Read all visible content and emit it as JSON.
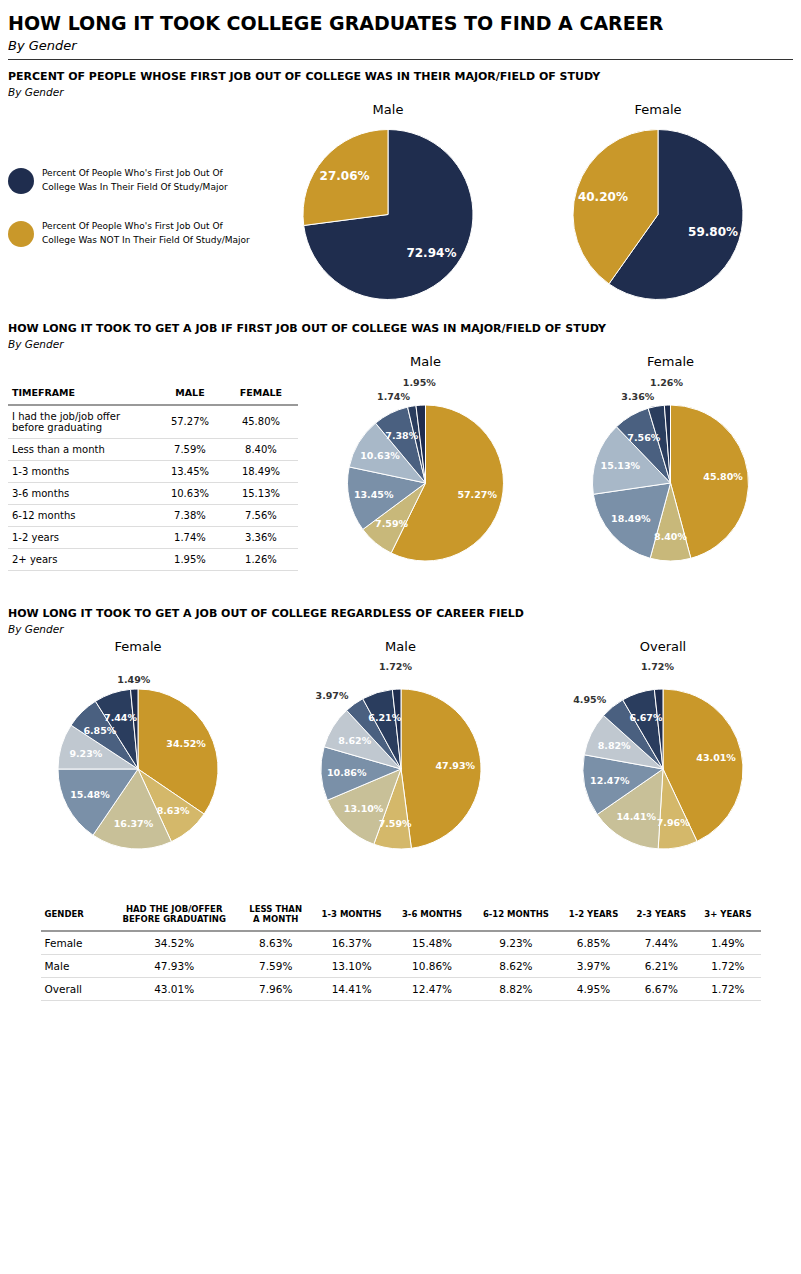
{
  "title": "HOW LONG IT TOOK COLLEGE GRADUATES TO FIND A CAREER",
  "subtitle": "By Gender",
  "chart_data": [
    {
      "type": "pie",
      "title": "PERCENT OF PEOPLE WHOSE FIRST JOB OUT OF COLLEGE WAS IN THEIR MAJOR/FIELD OF STUDY",
      "subtitle": "By Gender",
      "categories": [
        "Percent Of People Who's First Job Out Of\nCollege Was In Their Field Of Study/Major",
        "Percent Of People Who's First Job Out Of\nCollege Was NOT In Their Field Of Study/Major"
      ],
      "colors": [
        "#1f2d4e",
        "#c9982a"
      ],
      "data_labels": true,
      "series": [
        {
          "name": "Male",
          "values": [
            72.94,
            27.06
          ],
          "value_labels": [
            "72.94%",
            "27.06%"
          ]
        },
        {
          "name": "Female",
          "values": [
            59.8,
            40.2
          ],
          "value_labels": [
            "59.80%",
            "40.20%"
          ]
        }
      ]
    },
    {
      "type": "table",
      "title": "HOW LONG IT TOOK TO GET A JOB IF FIRST JOB OUT OF COLLEGE WAS IN MAJOR/FIELD OF STUDY",
      "subtitle": "By Gender",
      "x_label": "TIMEFRAME",
      "categories": [
        "I had the job/job offer\nbefore graduating",
        "Less than a month",
        "1-3 months",
        "3-6 months",
        "6-12 months",
        "1-2 years",
        "2+ years"
      ],
      "series": [
        {
          "name": "MALE",
          "values": [
            57.27,
            7.59,
            13.45,
            10.63,
            7.38,
            1.74,
            1.95
          ],
          "value_labels": [
            "57.27%",
            "7.59%",
            "13.45%",
            "10.63%",
            "7.38%",
            "1.74%",
            "1.95%"
          ]
        },
        {
          "name": "FEMALE",
          "values": [
            45.8,
            8.4,
            18.49,
            15.13,
            7.56,
            3.36,
            1.26
          ],
          "value_labels": [
            "45.80%",
            "8.40%",
            "18.49%",
            "15.13%",
            "7.56%",
            "3.36%",
            "1.26%"
          ]
        }
      ]
    },
    {
      "type": "pie",
      "colors": [
        "#c9982a",
        "#c8b87a",
        "#7a90a8",
        "#a8b8c8",
        "#4a6080",
        "#2a3d5e",
        "#1f2d4e"
      ],
      "data_labels": true,
      "series": [
        {
          "name": "Male",
          "values": [
            57.27,
            7.59,
            13.45,
            10.63,
            7.38,
            1.74,
            1.95
          ],
          "value_labels": [
            "57.27%",
            "7.59%",
            "13.45%",
            "10.63%",
            "7.38%",
            "1.74%",
            "1.95%"
          ]
        },
        {
          "name": "Female",
          "values": [
            45.8,
            8.4,
            18.49,
            15.13,
            7.56,
            3.36,
            1.26
          ],
          "value_labels": [
            "45.80%",
            "8.40%",
            "18.49%",
            "15.13%",
            "7.56%",
            "3.36%",
            "1.26%"
          ]
        }
      ]
    },
    {
      "type": "pie",
      "title": "HOW LONG IT TOOK TO GET A JOB OUT OF COLLEGE REGARDLESS OF CAREER FIELD",
      "subtitle": "By Gender",
      "colors": [
        "#c9982a",
        "#d4b86a",
        "#c8c098",
        "#7a90a8",
        "#c0c8d0",
        "#4a6080",
        "#2a3d5e",
        "#1f2d4e"
      ],
      "data_labels": true,
      "series": [
        {
          "name": "Female",
          "values": [
            34.52,
            8.63,
            16.37,
            15.48,
            9.23,
            6.85,
            7.44,
            1.49
          ],
          "value_labels": [
            "34.52%",
            "8.63%",
            "16.37%",
            "15.48%",
            "9.23%",
            "6.85%",
            "7.44%",
            "1.49%"
          ]
        },
        {
          "name": "Male",
          "values": [
            47.93,
            7.59,
            13.1,
            10.86,
            8.62,
            3.97,
            6.21,
            1.72
          ],
          "value_labels": [
            "47.93%",
            "7.59%",
            "13.10%",
            "10.86%",
            "8.62%",
            "3.97%",
            "6.21%",
            "1.72%"
          ]
        },
        {
          "name": "Overall",
          "values": [
            43.01,
            7.96,
            14.41,
            12.47,
            8.82,
            4.95,
            6.67,
            1.72
          ],
          "value_labels": [
            "43.01%",
            "7.96%",
            "14.41%",
            "12.47%",
            "8.82%",
            "4.95%",
            "6.67%",
            "1.72%"
          ]
        }
      ]
    },
    {
      "type": "table",
      "x_label": "GENDER",
      "categories": [
        "Female",
        "Male",
        "Overall"
      ],
      "series": [
        {
          "name": "HAD THE JOB/OFFER\nBEFORE GRADUATING",
          "values": [
            34.52,
            47.93,
            43.01
          ],
          "value_labels": [
            "34.52%",
            "47.93%",
            "43.01%"
          ]
        },
        {
          "name": "LESS THAN\nA MONTH",
          "values": [
            8.63,
            7.59,
            7.96
          ],
          "value_labels": [
            "8.63%",
            "7.59%",
            "7.96%"
          ]
        },
        {
          "name": "1-3 MONTHS",
          "values": [
            16.37,
            13.1,
            14.41
          ],
          "value_labels": [
            "16.37%",
            "13.10%",
            "14.41%"
          ]
        },
        {
          "name": "3-6 MONTHS",
          "values": [
            15.48,
            10.86,
            12.47
          ],
          "value_labels": [
            "15.48%",
            "10.86%",
            "12.47%"
          ]
        },
        {
          "name": "6-12 MONTHS",
          "values": [
            9.23,
            8.62,
            8.82
          ],
          "value_labels": [
            "9.23%",
            "8.62%",
            "8.82%"
          ]
        },
        {
          "name": "1-2 YEARS",
          "values": [
            6.85,
            3.97,
            4.95
          ],
          "value_labels": [
            "6.85%",
            "3.97%",
            "4.95%"
          ]
        },
        {
          "name": "2-3 YEARS",
          "values": [
            7.44,
            6.21,
            6.67
          ],
          "value_labels": [
            "7.44%",
            "6.21%",
            "6.67%"
          ]
        },
        {
          "name": "3+ YEARS",
          "values": [
            1.49,
            1.72,
            1.72
          ],
          "value_labels": [
            "1.49%",
            "1.72%",
            "1.72%"
          ]
        }
      ]
    }
  ]
}
